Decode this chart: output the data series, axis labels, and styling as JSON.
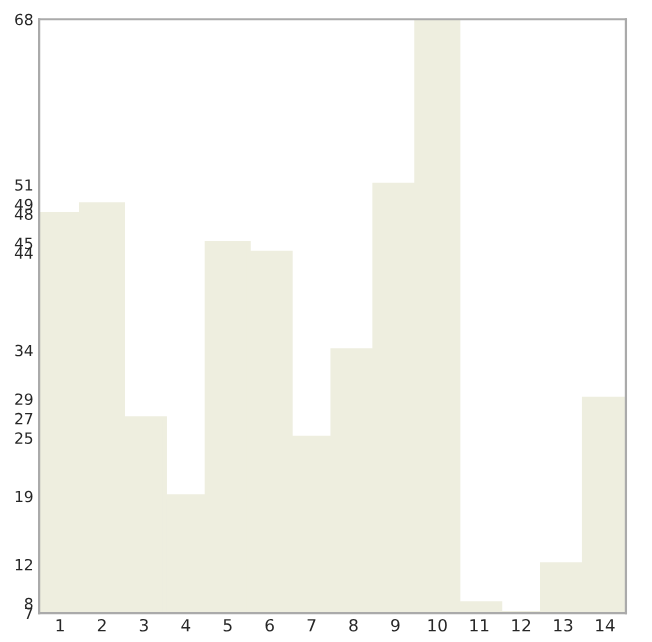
{
  "chart_data": {
    "type": "bar",
    "categories": [
      "1",
      "2",
      "3",
      "4",
      "5",
      "6",
      "7",
      "8",
      "9",
      "10",
      "11",
      "12",
      "13",
      "14"
    ],
    "values": [
      48,
      49,
      27,
      19,
      45,
      44,
      25,
      34,
      51,
      68,
      8,
      7,
      12,
      29
    ],
    "color": "#eeeedf",
    "ylim": [
      7,
      68
    ],
    "yticks": [
      7,
      8,
      12,
      19,
      25,
      27,
      29,
      34,
      44,
      45,
      48,
      49,
      51,
      68
    ],
    "grid": false
  }
}
